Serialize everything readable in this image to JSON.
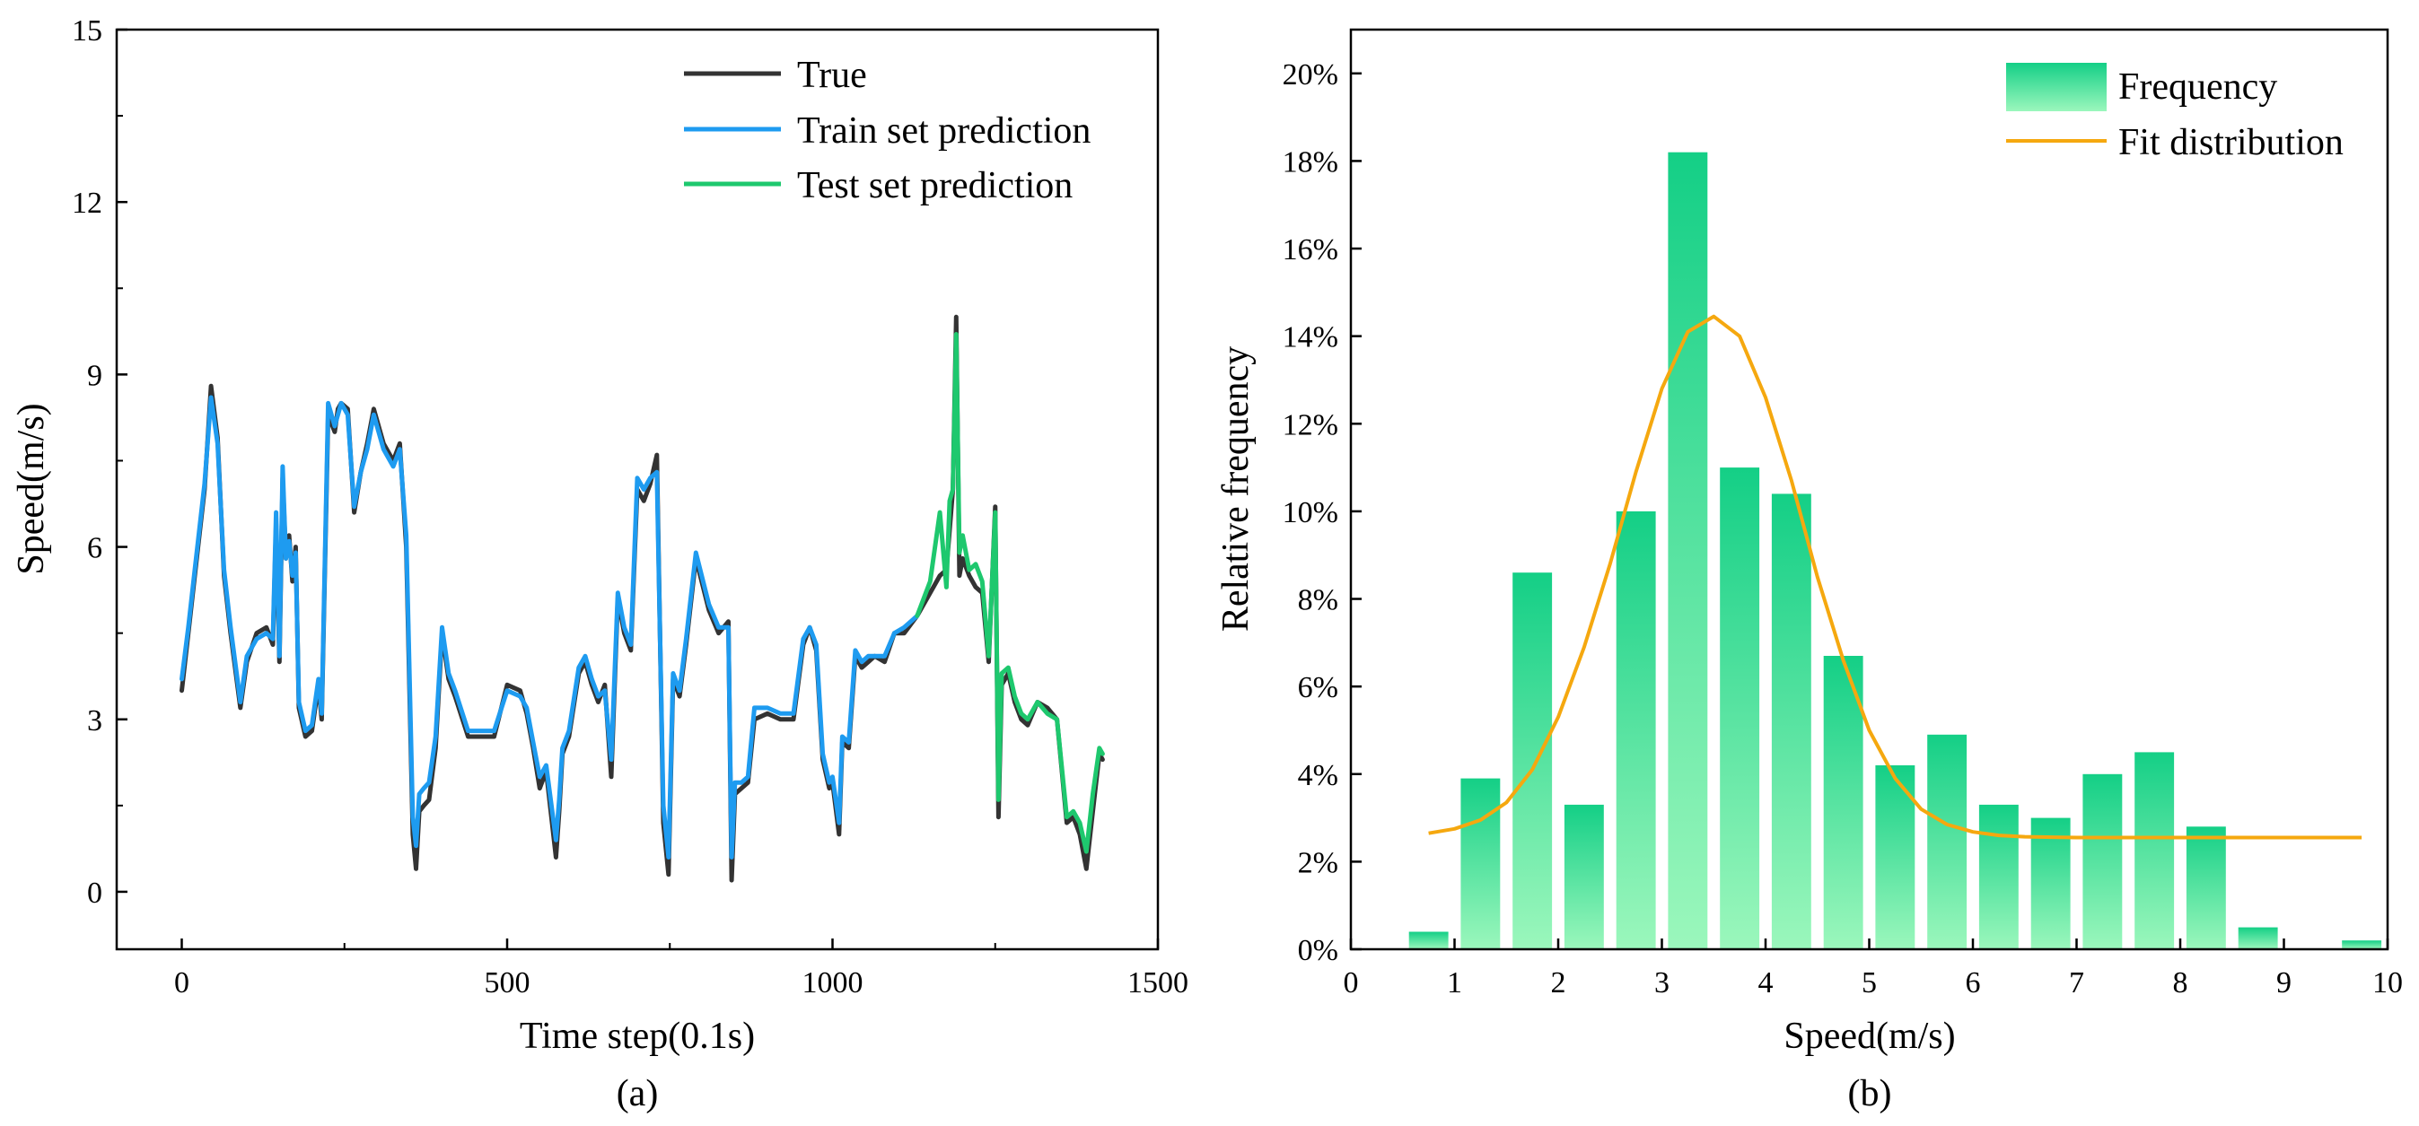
{
  "colors": {
    "true": "#333333",
    "train": "#1e9bf0",
    "test": "#1ec86e",
    "bar_top": "#14cf86",
    "bar_bottom": "#9bf7bc",
    "fit": "#f5a80f"
  },
  "chart_data": [
    {
      "type": "line",
      "panel_label": "(a)",
      "title": "",
      "xlabel": "Time step(0.1s)",
      "ylabel": "Speed(m/s)",
      "xlim": [
        -100,
        1500
      ],
      "ylim": [
        -1,
        15
      ],
      "xticks": [
        0,
        500,
        1000,
        1500
      ],
      "xtick_labels": [
        "0",
        "500",
        "1000",
        "1500"
      ],
      "yticks": [
        0,
        3,
        6,
        9,
        12,
        15
      ],
      "ytick_labels": [
        "0",
        "3",
        "6",
        "9",
        "12",
        "15"
      ],
      "legend": [
        "True",
        "Train set prediction",
        "Test set prediction"
      ],
      "legend_position": "top-right",
      "series": [
        {
          "name": "True",
          "x": [
            0,
            10,
            20,
            35,
            45,
            55,
            65,
            75,
            90,
            100,
            115,
            130,
            140,
            145,
            150,
            155,
            160,
            165,
            170,
            175,
            180,
            190,
            200,
            210,
            215,
            225,
            235,
            240,
            245,
            255,
            265,
            275,
            285,
            295,
            310,
            325,
            335,
            345,
            355,
            360,
            365,
            372,
            380,
            390,
            400,
            410,
            420,
            440,
            460,
            480,
            500,
            520,
            530,
            540,
            550,
            560,
            575,
            580,
            585,
            595,
            610,
            620,
            630,
            640,
            650,
            660,
            670,
            680,
            690,
            700,
            710,
            720,
            730,
            740,
            748,
            755,
            765,
            775,
            790,
            810,
            825,
            840,
            845,
            850,
            860,
            870,
            880,
            900,
            920,
            940,
            955,
            965,
            975,
            985,
            995,
            1000,
            1010,
            1015,
            1025,
            1035,
            1045,
            1055,
            1065,
            1080,
            1095,
            1110,
            1130,
            1150,
            1165,
            1175,
            1180,
            1185,
            1190,
            1195,
            1200,
            1210,
            1220,
            1230,
            1240,
            1250,
            1255,
            1260,
            1270,
            1280,
            1290,
            1300,
            1315,
            1330,
            1345,
            1360,
            1370,
            1380,
            1390,
            1400,
            1410,
            1415
          ],
          "y": [
            3.5,
            4.5,
            5.5,
            7.0,
            8.8,
            7.9,
            5.5,
            4.5,
            3.2,
            4.0,
            4.5,
            4.6,
            4.3,
            6.4,
            4.0,
            7.2,
            5.8,
            6.2,
            5.4,
            6.0,
            3.2,
            2.7,
            2.8,
            3.6,
            3.0,
            8.3,
            8.0,
            8.4,
            8.5,
            8.4,
            6.6,
            7.3,
            7.8,
            8.4,
            7.8,
            7.5,
            7.8,
            6.0,
            1.0,
            0.4,
            1.4,
            1.5,
            1.6,
            2.5,
            4.5,
            3.7,
            3.4,
            2.7,
            2.7,
            2.7,
            3.6,
            3.5,
            3.1,
            2.5,
            1.8,
            2.1,
            0.6,
            1.4,
            2.4,
            2.7,
            3.8,
            4.0,
            3.6,
            3.3,
            3.6,
            2.0,
            5.1,
            4.5,
            4.2,
            7.0,
            6.8,
            7.1,
            7.6,
            1.2,
            0.3,
            3.7,
            3.4,
            4.3,
            5.8,
            4.9,
            4.5,
            4.7,
            0.2,
            1.7,
            1.8,
            1.9,
            3.0,
            3.1,
            3.0,
            3.0,
            4.3,
            4.6,
            4.2,
            2.3,
            1.8,
            1.9,
            1.0,
            2.6,
            2.5,
            4.1,
            3.9,
            4.0,
            4.1,
            4.0,
            4.5,
            4.5,
            4.8,
            5.2,
            5.5,
            5.6,
            6.3,
            7.0,
            10.0,
            5.5,
            5.8,
            5.5,
            5.3,
            5.2,
            4.0,
            6.7,
            1.3,
            3.6,
            3.8,
            3.3,
            3.0,
            2.9,
            3.3,
            3.2,
            3.0,
            1.2,
            1.3,
            1.0,
            0.4,
            1.4,
            2.4,
            2.3
          ],
          "style": "solid"
        },
        {
          "name": "Train set prediction",
          "x": [
            0,
            10,
            20,
            35,
            45,
            55,
            65,
            75,
            90,
            100,
            115,
            130,
            140,
            145,
            150,
            155,
            160,
            165,
            170,
            175,
            180,
            190,
            200,
            210,
            215,
            225,
            235,
            240,
            245,
            255,
            265,
            275,
            285,
            295,
            310,
            325,
            335,
            345,
            355,
            360,
            365,
            372,
            380,
            390,
            400,
            410,
            420,
            440,
            460,
            480,
            500,
            520,
            530,
            540,
            550,
            560,
            575,
            580,
            585,
            595,
            610,
            620,
            630,
            640,
            650,
            660,
            670,
            680,
            690,
            700,
            710,
            720,
            730,
            740,
            748,
            755,
            765,
            775,
            790,
            810,
            825,
            840,
            845,
            850,
            860,
            870,
            880,
            900,
            920,
            940,
            955,
            965,
            975,
            985,
            995,
            1000,
            1010,
            1015,
            1025,
            1035,
            1045,
            1055,
            1065,
            1080,
            1095,
            1110,
            1130
          ],
          "y": [
            3.7,
            4.6,
            5.6,
            7.1,
            8.6,
            7.8,
            5.6,
            4.6,
            3.3,
            4.1,
            4.4,
            4.5,
            4.4,
            6.6,
            4.1,
            7.4,
            5.8,
            6.1,
            5.5,
            5.9,
            3.3,
            2.8,
            2.9,
            3.7,
            3.1,
            8.5,
            8.1,
            8.3,
            8.5,
            8.3,
            6.7,
            7.3,
            7.7,
            8.3,
            7.7,
            7.4,
            7.7,
            6.2,
            1.3,
            0.8,
            1.7,
            1.8,
            1.9,
            2.7,
            4.6,
            3.8,
            3.5,
            2.8,
            2.8,
            2.8,
            3.5,
            3.4,
            3.2,
            2.6,
            2.0,
            2.2,
            0.9,
            1.6,
            2.5,
            2.8,
            3.9,
            4.1,
            3.7,
            3.4,
            3.5,
            2.3,
            5.2,
            4.6,
            4.3,
            7.2,
            7.0,
            7.2,
            7.3,
            1.5,
            0.6,
            3.8,
            3.5,
            4.4,
            5.9,
            5.0,
            4.6,
            4.6,
            0.6,
            1.9,
            1.9,
            2.0,
            3.2,
            3.2,
            3.1,
            3.1,
            4.4,
            4.6,
            4.3,
            2.4,
            1.9,
            2.0,
            1.2,
            2.7,
            2.6,
            4.2,
            4.0,
            4.1,
            4.1,
            4.1,
            4.5,
            4.6,
            4.8
          ],
          "style": "solid"
        },
        {
          "name": "Test set prediction",
          "x": [
            1130,
            1150,
            1165,
            1175,
            1180,
            1185,
            1190,
            1195,
            1200,
            1210,
            1220,
            1230,
            1240,
            1250,
            1255,
            1260,
            1270,
            1280,
            1290,
            1300,
            1315,
            1330,
            1345,
            1360,
            1370,
            1380,
            1390,
            1400,
            1410,
            1415
          ],
          "y": [
            4.8,
            5.4,
            6.6,
            5.3,
            6.8,
            7.0,
            9.7,
            5.9,
            6.2,
            5.6,
            5.7,
            5.4,
            4.1,
            6.6,
            1.6,
            3.8,
            3.9,
            3.4,
            3.1,
            3.0,
            3.3,
            3.1,
            3.0,
            1.3,
            1.4,
            1.2,
            0.7,
            1.7,
            2.5,
            2.4
          ],
          "style": "solid"
        }
      ]
    },
    {
      "type": "bar",
      "panel_label": "(b)",
      "title": "",
      "xlabel": "Speed(m/s)",
      "ylabel": "Relative frequency",
      "xlim": [
        0,
        10
      ],
      "ylim": [
        0,
        21
      ],
      "xticks": [
        0,
        1,
        2,
        3,
        4,
        5,
        6,
        7,
        8,
        9,
        10
      ],
      "xtick_labels": [
        "0",
        "1",
        "2",
        "3",
        "4",
        "5",
        "6",
        "7",
        "8",
        "9",
        "10"
      ],
      "yticks": [
        0,
        2,
        4,
        6,
        8,
        10,
        12,
        14,
        16,
        18,
        20
      ],
      "ytick_labels": [
        "0%",
        "2%",
        "4%",
        "6%",
        "8%",
        "10%",
        "12%",
        "14%",
        "16%",
        "18%",
        "20%"
      ],
      "legend": [
        "Frequency",
        "Fit distribution"
      ],
      "legend_position": "top-right",
      "bin_centers": [
        0.75,
        1.25,
        1.75,
        2.25,
        2.75,
        3.25,
        3.75,
        4.25,
        4.75,
        5.25,
        5.75,
        6.25,
        6.75,
        7.25,
        7.75,
        8.25,
        8.75,
        9.75
      ],
      "bin_width": 0.5,
      "values": [
        0.4,
        3.9,
        8.6,
        3.3,
        10.0,
        18.2,
        11.0,
        10.4,
        6.7,
        4.2,
        4.9,
        3.3,
        3.0,
        4.0,
        4.5,
        2.8,
        0.5,
        0.2
      ],
      "fit": {
        "name": "Fit distribution",
        "x": [
          0.75,
          1.0,
          1.25,
          1.5,
          1.75,
          2.0,
          2.25,
          2.5,
          2.75,
          3.0,
          3.25,
          3.5,
          3.75,
          4.0,
          4.25,
          4.5,
          4.75,
          5.0,
          5.25,
          5.5,
          5.75,
          6.0,
          6.25,
          6.5,
          7.0,
          7.5,
          8.0,
          8.5,
          9.0,
          9.5,
          9.75
        ],
        "y": [
          2.65,
          2.75,
          2.95,
          3.35,
          4.1,
          5.3,
          6.9,
          8.8,
          10.9,
          12.8,
          14.1,
          14.45,
          14.0,
          12.6,
          10.7,
          8.5,
          6.6,
          5.0,
          3.9,
          3.2,
          2.85,
          2.68,
          2.6,
          2.57,
          2.55,
          2.55,
          2.55,
          2.55,
          2.55,
          2.55,
          2.55
        ]
      }
    }
  ]
}
